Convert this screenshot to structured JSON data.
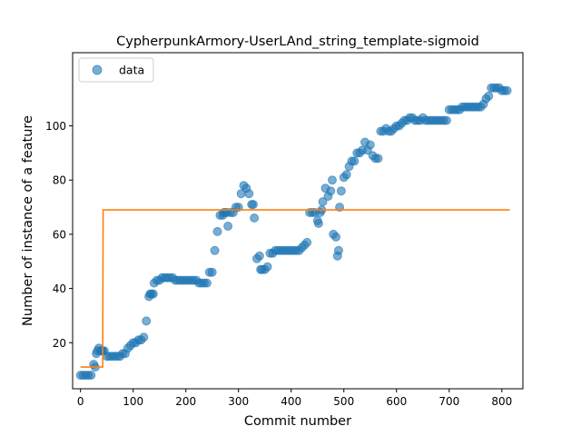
{
  "chart_data": {
    "type": "scatter",
    "title": "CypherpunkArmory-UserLAnd_string_template-sigmoid",
    "xlabel": "Commit number",
    "ylabel": "Number of instance of a feature",
    "xlim": [
      -15,
      840
    ],
    "ylim": [
      3,
      127
    ],
    "xticks": [
      0,
      100,
      200,
      300,
      400,
      500,
      600,
      700,
      800
    ],
    "yticks": [
      20,
      40,
      60,
      80,
      100
    ],
    "legend": {
      "position": "top-left",
      "entries": [
        "data"
      ]
    },
    "grid": false,
    "colors": {
      "data": "#1f77b4",
      "fit": "#ff7f0e"
    },
    "series": [
      {
        "name": "data",
        "kind": "scatter",
        "x": [
          0,
          5,
          10,
          15,
          20,
          25,
          28,
          30,
          32,
          35,
          38,
          40,
          42,
          45,
          50,
          55,
          60,
          65,
          70,
          75,
          80,
          85,
          90,
          95,
          100,
          105,
          110,
          115,
          120,
          125,
          130,
          132,
          135,
          138,
          140,
          145,
          150,
          155,
          160,
          165,
          170,
          175,
          180,
          185,
          190,
          195,
          200,
          205,
          210,
          215,
          220,
          225,
          230,
          235,
          240,
          245,
          250,
          255,
          260,
          265,
          270,
          272,
          275,
          278,
          280,
          285,
          290,
          295,
          300,
          305,
          310,
          315,
          320,
          325,
          328,
          330,
          335,
          340,
          342,
          345,
          350,
          355,
          360,
          365,
          370,
          375,
          380,
          385,
          390,
          395,
          400,
          405,
          410,
          415,
          420,
          425,
          430,
          435,
          440,
          445,
          450,
          452,
          455,
          458,
          460,
          465,
          470,
          475,
          478,
          480,
          485,
          488,
          490,
          492,
          495,
          500,
          505,
          510,
          515,
          520,
          525,
          530,
          535,
          540,
          545,
          550,
          555,
          560,
          565,
          570,
          575,
          580,
          585,
          590,
          595,
          600,
          605,
          610,
          615,
          620,
          625,
          630,
          635,
          640,
          645,
          650,
          655,
          660,
          665,
          670,
          675,
          680,
          685,
          690,
          695,
          700,
          705,
          710,
          715,
          720,
          725,
          730,
          735,
          740,
          745,
          750,
          755,
          760,
          765,
          770,
          775,
          780,
          785,
          790,
          795,
          800,
          805,
          810
        ],
        "y": [
          8,
          8,
          8,
          8,
          8,
          12,
          11,
          16,
          17,
          18,
          17,
          17,
          17,
          17,
          15,
          15,
          15,
          15,
          15,
          15,
          16,
          16,
          18,
          19,
          20,
          20,
          21,
          21,
          22,
          28,
          37,
          38,
          38,
          38,
          42,
          43,
          43,
          44,
          44,
          44,
          44,
          44,
          43,
          43,
          43,
          43,
          43,
          43,
          43,
          43,
          43,
          42,
          42,
          42,
          42,
          46,
          46,
          54,
          61,
          67,
          67,
          68,
          68,
          68,
          63,
          68,
          68,
          70,
          70,
          75,
          78,
          77,
          75,
          71,
          71,
          66,
          51,
          52,
          47,
          47,
          47,
          48,
          53,
          53,
          54,
          54,
          54,
          54,
          54,
          54,
          54,
          54,
          54,
          54,
          55,
          56,
          57,
          68,
          68,
          68,
          65,
          64,
          68,
          69,
          72,
          77,
          74,
          76,
          80,
          60,
          59,
          52,
          54,
          70,
          76,
          81,
          82,
          85,
          87,
          87,
          90,
          90,
          91,
          94,
          91,
          93,
          89,
          88,
          88,
          98,
          98,
          99,
          98,
          98,
          99,
          100,
          100,
          101,
          102,
          102,
          103,
          103,
          102,
          102,
          102,
          103,
          102,
          102,
          102,
          102,
          102,
          102,
          102,
          102,
          102,
          106,
          106,
          106,
          106,
          106,
          107,
          107,
          107,
          107,
          107,
          107,
          107,
          107,
          108,
          110,
          111,
          114,
          114,
          114,
          114,
          113,
          113,
          113
        ]
      },
      {
        "name": "",
        "kind": "line",
        "x": [
          0,
          42,
          43,
          815
        ],
        "y": [
          11,
          11,
          69,
          69
        ]
      }
    ]
  }
}
